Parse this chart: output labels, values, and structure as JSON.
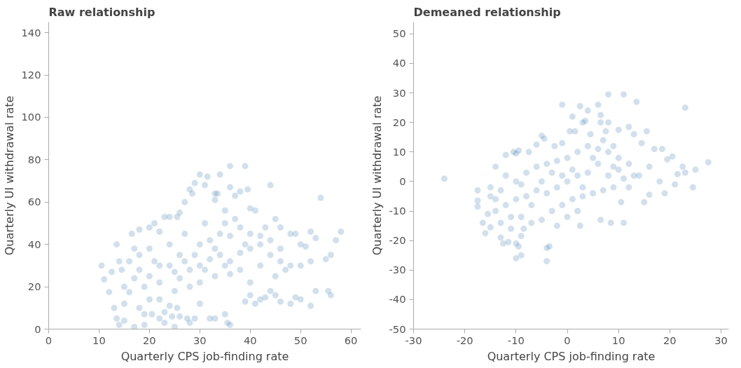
{
  "chart_data": [
    {
      "type": "scatter",
      "title": "Raw relationship",
      "xlabel": "Quarterly CPS job-finding rate",
      "ylabel": "Quarterly UI withdrawal rate",
      "xlim": [
        0,
        62
      ],
      "ylim": [
        0,
        145
      ],
      "xticks": [
        0,
        10,
        20,
        30,
        40,
        50,
        60
      ],
      "yticks": [
        0,
        20,
        40,
        60,
        80,
        100,
        120,
        140
      ],
      "grid": false,
      "marker": "circle",
      "series": [
        {
          "color": "#4682b4",
          "x": [
            10.5,
            11,
            12,
            12.5,
            13,
            13.5,
            13.5,
            14,
            14,
            15,
            15,
            16,
            16.5,
            17,
            18,
            17,
            18,
            19,
            19,
            20,
            20,
            21,
            22,
            22,
            23,
            23,
            24,
            24,
            23,
            24.5,
            25,
            25.5,
            26,
            27,
            28,
            28.5,
            29,
            30,
            31,
            31.5,
            33,
            33.5,
            33,
            34,
            35,
            36,
            36,
            37,
            38,
            39,
            39.5,
            40,
            41,
            44,
            45,
            46,
            48,
            49,
            50,
            51,
            52,
            53,
            54,
            55,
            56,
            57,
            58,
            55.5,
            56,
            53,
            52,
            50,
            49,
            48,
            45,
            46,
            43,
            44,
            42,
            41,
            40,
            39,
            35,
            35.5,
            36,
            33,
            32,
            30,
            27.5,
            28,
            29,
            26,
            25.5,
            22,
            20.5,
            19,
            15,
            14.5,
            16,
            18,
            20,
            22,
            24,
            26,
            28,
            30,
            32,
            34,
            36,
            38,
            40,
            42,
            44,
            46,
            48,
            18,
            20,
            24,
            26,
            30,
            32,
            34,
            36,
            38,
            40,
            42,
            44,
            46,
            30,
            33,
            36,
            38,
            40,
            28,
            25,
            22,
            27,
            31,
            35,
            37,
            29,
            27,
            31,
            33,
            35,
            25,
            21,
            17,
            42,
            45,
            47,
            50,
            52,
            39,
            43
          ],
          "values": [
            30,
            23.5,
            17.5,
            27,
            10,
            40,
            5,
            32,
            2,
            12,
            4,
            17.5,
            45,
            1,
            47,
            38,
            10,
            2,
            7,
            14,
            48,
            50,
            14,
            46,
            53,
            8,
            53,
            11,
            3,
            6,
            1,
            53,
            55,
            60,
            66,
            64,
            69,
            73,
            68,
            72,
            64,
            64,
            61,
            73,
            56,
            77,
            67,
            63,
            65,
            77,
            66,
            57,
            56,
            68,
            52,
            48,
            45,
            45,
            40,
            39,
            46,
            43,
            62,
            33,
            35,
            42,
            46,
            18,
            16,
            18,
            11,
            14,
            15,
            12,
            16,
            13,
            15,
            18,
            14,
            12,
            16,
            13,
            7,
            3,
            2,
            5,
            5,
            12,
            5,
            3,
            5,
            6,
            10,
            5,
            7,
            20,
            20,
            28,
            32,
            28,
            25,
            30,
            30,
            35,
            28,
            30,
            33,
            35,
            32,
            36,
            38,
            40,
            35,
            38,
            30,
            35,
            38,
            40,
            24,
            40,
            42,
            45,
            44,
            48,
            45,
            44,
            42,
            32,
            22,
            25,
            26,
            28,
            22,
            20,
            18,
            22,
            45,
            50,
            50,
            52,
            35,
            32,
            28,
            38,
            30,
            27,
            32,
            24,
            30,
            25,
            28,
            30,
            32,
            40,
            48
          ]
        }
      ]
    },
    {
      "type": "scatter",
      "title": "Demeaned relationship",
      "xlabel": "Quarterly CPS job-finding rate",
      "ylabel": "Quarterly UI withdrawal rate",
      "xlim": [
        -30,
        31.5
      ],
      "ylim": [
        -50,
        54
      ],
      "xticks": [
        -30,
        -20,
        -10,
        0,
        10,
        20,
        30
      ],
      "yticks": [
        -50,
        -40,
        -30,
        -20,
        -10,
        0,
        10,
        20,
        30,
        40,
        50
      ],
      "grid": false,
      "marker": "circle",
      "series": [
        {
          "color": "#4682b4",
          "x": [
            -24,
            -17.5,
            -17.5,
            -17.5,
            -16.5,
            -16,
            -15.5,
            -15,
            -15,
            -14,
            -13,
            -12.5,
            -12,
            -11.5,
            -11,
            -10,
            -10,
            -9.5,
            -9,
            -9,
            -8.5,
            -10.5,
            -9.5,
            -10,
            -7.5,
            -6,
            -5,
            -4.5,
            -4,
            -3.5,
            -4,
            -2.5,
            -1,
            -1,
            0,
            0.5,
            1,
            1.5,
            2.5,
            2.5,
            3,
            3.5,
            4,
            4.5,
            6,
            6.5,
            6.5,
            7.5,
            8,
            8,
            6.5,
            8.5,
            11,
            11,
            13.5,
            23,
            10,
            12,
            13,
            15.5,
            14.5,
            17,
            18.5,
            20.5,
            19.5,
            22.5,
            23,
            25,
            27.5,
            24.5,
            21,
            19,
            21.5,
            18,
            16,
            15,
            10.5,
            12,
            14,
            16,
            12,
            10,
            8,
            6,
            4,
            2,
            0,
            -2,
            -4,
            -6,
            -8,
            -10,
            -12,
            -14,
            -13,
            -11,
            -9,
            -7,
            -5,
            -3,
            -1,
            1,
            3,
            5,
            7,
            9,
            -6,
            -4,
            -2,
            0,
            2,
            4,
            6,
            8,
            10,
            -8,
            -10,
            -12,
            -14,
            -7,
            -3,
            1,
            5,
            9,
            11,
            13,
            3,
            -1,
            -5,
            -9,
            7,
            9,
            -2,
            2,
            -13,
            -15
          ],
          "values": [
            1,
            -3,
            -6.5,
            -8.5,
            -14,
            -17.5,
            -11,
            -15.5,
            -2,
            5,
            -19,
            -21,
            9,
            -20.5,
            -16,
            -21,
            -26,
            -22,
            -25,
            -18.5,
            -16,
            10,
            10.5,
            9.5,
            10,
            12.5,
            15.5,
            14.5,
            -22.5,
            -22,
            -27,
            12,
            13,
            26,
            -12,
            17,
            22,
            17,
            -15,
            25.5,
            20,
            20.5,
            24,
            16,
            26,
            22.5,
            20,
            17,
            29.5,
            20,
            -13,
            -14,
            -14,
            29.5,
            27,
            25,
            17.5,
            18.5,
            16,
            17,
            13,
            11,
            11,
            8.5,
            7.5,
            5,
            3,
            4,
            6.5,
            -2,
            -1,
            -4,
            2.5,
            0,
            -4.5,
            -7,
            -7,
            -2,
            2,
            5,
            6,
            4,
            2,
            6,
            3,
            2,
            0,
            -2,
            -4,
            -3,
            -5,
            -6,
            -8,
            -10,
            -3,
            -12,
            -12,
            -14,
            -13,
            -10,
            -8,
            -6,
            -5,
            -4,
            -3,
            -2,
            5,
            6,
            7,
            8,
            10,
            12,
            11,
            10,
            8,
            3,
            0,
            2,
            -6,
            -8,
            3,
            4,
            8,
            5,
            1,
            2,
            -2,
            2,
            0,
            -1,
            14,
            12,
            -15,
            -10,
            -14,
            -5
          ]
        }
      ]
    }
  ]
}
